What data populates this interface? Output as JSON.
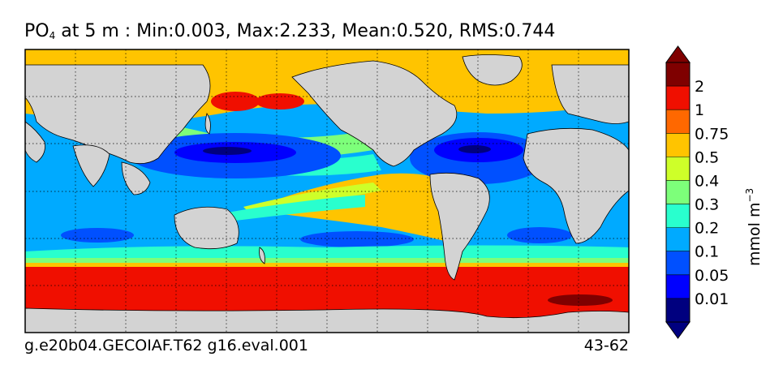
{
  "title": {
    "variable": "PO",
    "subscript": "4",
    "rest": " at 5 m : Min:0.003, Max:2.233, Mean:0.520, RMS:0.744"
  },
  "footer": {
    "case_name": "g.e20b04.GECOIAF.T62 g16.eval.001",
    "years": "43-62"
  },
  "colorbar": {
    "unit": "mmol m",
    "unit_exponent": "−3",
    "ticks": [
      "2",
      "1",
      "0.75",
      "0.5",
      "0.4",
      "0.3",
      "0.2",
      "0.1",
      "0.05",
      "0.01"
    ],
    "colors": [
      "#00007f",
      "#0000ff",
      "#0050ff",
      "#00aaff",
      "#29ffce",
      "#7dff7a",
      "#ceff29",
      "#ffc400",
      "#ff6800",
      "#f00f00",
      "#7f0000"
    ],
    "extend": "both"
  },
  "map": {
    "land_color": "#d3d3d3",
    "grid": true,
    "grid_style": "dotted"
  }
}
